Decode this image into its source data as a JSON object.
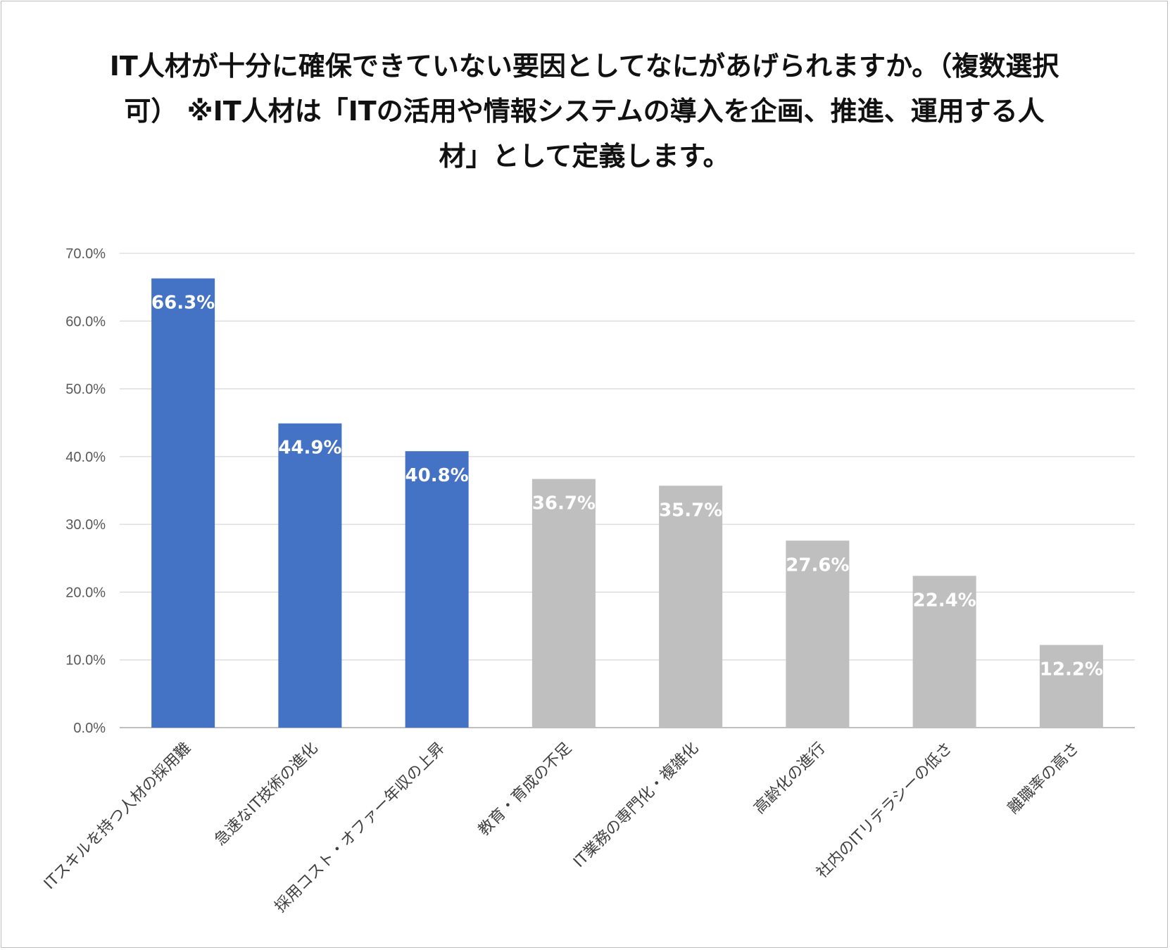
{
  "chart_data": {
    "type": "bar",
    "title": "IT人材が十分に確保できていない要因としてなにがあげられますか。（複数選択可） ※IT人材は「ITの活用や情報システムの導入を企画、推進、運用する人材」として定義します。",
    "categories": [
      "ITスキルを持つ人材の採用難",
      "急速なIT技術の進化",
      "採用コスト・オファー年収の上昇",
      "教育・育成の不足",
      "IT業務の専門化・複雑化",
      "高齢化の進行",
      "社内のITリテラシーの低さ",
      "離職率の高さ"
    ],
    "values": [
      66.3,
      44.9,
      40.8,
      36.7,
      35.7,
      27.6,
      22.4,
      12.2
    ],
    "data_labels": [
      "66.3%",
      "44.9%",
      "40.8%",
      "36.7%",
      "35.7%",
      "27.6%",
      "22.4%",
      "12.2%"
    ],
    "yticks": [
      "0.0%",
      "10.0%",
      "20.0%",
      "30.0%",
      "40.0%",
      "50.0%",
      "60.0%",
      "70.0%"
    ],
    "ylim": [
      0,
      70
    ],
    "xlabel": "",
    "ylabel": "",
    "grid": true,
    "highlight_count": 3,
    "colors": {
      "highlight": "#4472C4",
      "default": "#BFBFBF",
      "grid": "#D9D9D9",
      "axis": "#BFBFBF"
    }
  }
}
